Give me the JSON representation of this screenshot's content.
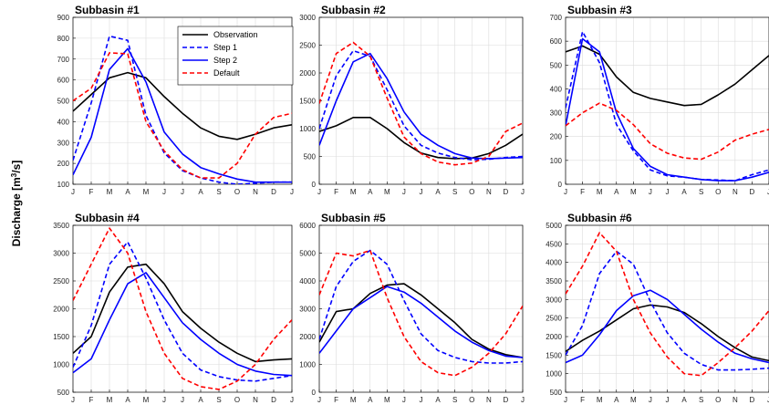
{
  "figure": {
    "ylabel_main": "Discharge [m",
    "ylabel_sup": "3",
    "ylabel_tail": "/s]"
  },
  "chart_data": [
    {
      "type": "line",
      "title": "Subbasin #1",
      "categories": [
        "J",
        "F",
        "M",
        "A",
        "M",
        "J",
        "J",
        "A",
        "S",
        "O",
        "N",
        "D",
        "J"
      ],
      "ylim": [
        100,
        900
      ],
      "yticks": [
        100,
        200,
        300,
        400,
        500,
        600,
        700,
        800,
        900
      ],
      "grid": true,
      "legend": "top-right",
      "series": [
        {
          "name": "Observation",
          "color": "#000000",
          "dash": "solid",
          "values": [
            450,
            530,
            610,
            635,
            610,
            520,
            440,
            370,
            330,
            315,
            340,
            370,
            385
          ]
        },
        {
          "name": "Step 1",
          "color": "#0000ff",
          "dash": "dashed",
          "values": [
            215,
            490,
            810,
            790,
            430,
            250,
            165,
            130,
            110,
            100,
            105,
            110,
            110
          ]
        },
        {
          "name": "Step 2",
          "color": "#0000ff",
          "dash": "solid",
          "values": [
            145,
            325,
            650,
            750,
            590,
            350,
            245,
            180,
            150,
            125,
            110,
            110,
            110
          ]
        },
        {
          "name": "Default",
          "color": "#ff0000",
          "dash": "dashed",
          "values": [
            500,
            560,
            730,
            725,
            400,
            260,
            170,
            130,
            130,
            200,
            340,
            420,
            440
          ]
        }
      ]
    },
    {
      "type": "line",
      "title": "Subbasin #2",
      "categories": [
        "J",
        "F",
        "M",
        "A",
        "M",
        "J",
        "J",
        "A",
        "S",
        "O",
        "N",
        "D",
        "J"
      ],
      "ylim": [
        0,
        3000
      ],
      "yticks": [
        0,
        500,
        1000,
        1500,
        2000,
        2500,
        3000
      ],
      "grid": true,
      "series": [
        {
          "name": "Observation",
          "color": "#000000",
          "dash": "solid",
          "values": [
            950,
            1050,
            1200,
            1200,
            1000,
            750,
            560,
            480,
            460,
            470,
            550,
            700,
            900
          ]
        },
        {
          "name": "Step 1",
          "color": "#0000ff",
          "dash": "dashed",
          "values": [
            1000,
            1950,
            2400,
            2300,
            1700,
            1050,
            700,
            560,
            480,
            440,
            450,
            480,
            500
          ]
        },
        {
          "name": "Step 2",
          "color": "#0000ff",
          "dash": "solid",
          "values": [
            700,
            1500,
            2200,
            2350,
            1900,
            1300,
            900,
            700,
            550,
            470,
            460,
            470,
            480
          ]
        },
        {
          "name": "Default",
          "color": "#ff0000",
          "dash": "dashed",
          "values": [
            1450,
            2350,
            2550,
            2300,
            1550,
            850,
            550,
            400,
            350,
            380,
            500,
            950,
            1100
          ]
        }
      ]
    },
    {
      "type": "line",
      "title": "Subbasin #3",
      "categories": [
        "J",
        "F",
        "M",
        "A",
        "M",
        "J",
        "J",
        "A",
        "S",
        "O",
        "N",
        "D",
        "J"
      ],
      "ylim": [
        0,
        700
      ],
      "yticks": [
        0,
        100,
        200,
        300,
        400,
        500,
        600,
        700
      ],
      "grid": true,
      "series": [
        {
          "name": "Observation",
          "color": "#000000",
          "dash": "solid",
          "values": [
            555,
            580,
            545,
            450,
            385,
            360,
            345,
            330,
            335,
            375,
            420,
            480,
            540
          ]
        },
        {
          "name": "Step 1",
          "color": "#0000ff",
          "dash": "dashed",
          "values": [
            320,
            640,
            510,
            250,
            140,
            60,
            35,
            30,
            20,
            18,
            15,
            40,
            60
          ]
        },
        {
          "name": "Step 2",
          "color": "#0000ff",
          "dash": "solid",
          "values": [
            245,
            610,
            555,
            300,
            150,
            75,
            40,
            30,
            20,
            15,
            15,
            30,
            50
          ]
        },
        {
          "name": "Default",
          "color": "#ff0000",
          "dash": "dashed",
          "values": [
            245,
            300,
            340,
            310,
            250,
            170,
            130,
            110,
            105,
            135,
            185,
            210,
            230
          ]
        }
      ]
    },
    {
      "type": "line",
      "title": "Subbasin #4",
      "categories": [
        "J",
        "F",
        "M",
        "A",
        "M",
        "J",
        "J",
        "A",
        "S",
        "O",
        "N",
        "D",
        "J"
      ],
      "ylim": [
        500,
        3500
      ],
      "yticks": [
        500,
        1000,
        1500,
        2000,
        2500,
        3000,
        3500
      ],
      "grid": true,
      "series": [
        {
          "name": "Observation",
          "color": "#000000",
          "dash": "solid",
          "values": [
            1200,
            1500,
            2300,
            2750,
            2800,
            2450,
            1950,
            1650,
            1400,
            1200,
            1050,
            1080,
            1100
          ]
        },
        {
          "name": "Step 1",
          "color": "#0000ff",
          "dash": "dashed",
          "values": [
            950,
            1700,
            2800,
            3200,
            2550,
            1800,
            1200,
            900,
            780,
            720,
            700,
            750,
            800
          ]
        },
        {
          "name": "Step 2",
          "color": "#0000ff",
          "dash": "solid",
          "values": [
            850,
            1100,
            1800,
            2450,
            2650,
            2200,
            1750,
            1450,
            1200,
            1000,
            880,
            820,
            800
          ]
        },
        {
          "name": "Default",
          "color": "#ff0000",
          "dash": "dashed",
          "values": [
            2150,
            2800,
            3450,
            3000,
            1950,
            1200,
            750,
            600,
            550,
            700,
            1000,
            1450,
            1800
          ]
        }
      ]
    },
    {
      "type": "line",
      "title": "Subbasin #5",
      "categories": [
        "J",
        "F",
        "M",
        "A",
        "M",
        "J",
        "J",
        "A",
        "S",
        "O",
        "N",
        "D",
        "J"
      ],
      "ylim": [
        0,
        6000
      ],
      "yticks": [
        0,
        1000,
        2000,
        3000,
        4000,
        5000,
        6000
      ],
      "grid": true,
      "series": [
        {
          "name": "Observation",
          "color": "#000000",
          "dash": "solid",
          "values": [
            1800,
            2900,
            3000,
            3550,
            3850,
            3900,
            3500,
            3000,
            2500,
            1900,
            1550,
            1350,
            1250
          ]
        },
        {
          "name": "Step 1",
          "color": "#0000ff",
          "dash": "dashed",
          "values": [
            1900,
            3800,
            4700,
            5100,
            4600,
            3300,
            2100,
            1500,
            1250,
            1100,
            1050,
            1050,
            1100
          ]
        },
        {
          "name": "Step 2",
          "color": "#0000ff",
          "dash": "solid",
          "values": [
            1400,
            2200,
            3000,
            3400,
            3800,
            3600,
            3200,
            2700,
            2200,
            1800,
            1500,
            1300,
            1250
          ]
        },
        {
          "name": "Default",
          "color": "#ff0000",
          "dash": "dashed",
          "values": [
            3500,
            5000,
            4900,
            5100,
            3400,
            2000,
            1100,
            700,
            600,
            900,
            1400,
            2100,
            3100
          ]
        }
      ]
    },
    {
      "type": "line",
      "title": "Subbasin #6",
      "categories": [
        "J",
        "F",
        "M",
        "A",
        "M",
        "J",
        "J",
        "A",
        "S",
        "O",
        "N",
        "D",
        "J"
      ],
      "ylim": [
        500,
        5000
      ],
      "yticks": [
        500,
        1000,
        1500,
        2000,
        2500,
        3000,
        3500,
        4000,
        4500,
        5000
      ],
      "grid": true,
      "series": [
        {
          "name": "Observation",
          "color": "#000000",
          "dash": "solid",
          "values": [
            1600,
            1900,
            2150,
            2450,
            2750,
            2850,
            2800,
            2650,
            2350,
            2000,
            1700,
            1450,
            1350
          ]
        },
        {
          "name": "Step 1",
          "color": "#0000ff",
          "dash": "dashed",
          "values": [
            1500,
            2300,
            3700,
            4300,
            3950,
            2950,
            2100,
            1550,
            1250,
            1100,
            1100,
            1120,
            1150
          ]
        },
        {
          "name": "Step 2",
          "color": "#0000ff",
          "dash": "solid",
          "values": [
            1300,
            1500,
            2050,
            2700,
            3100,
            3250,
            3000,
            2600,
            2200,
            1850,
            1550,
            1400,
            1300
          ]
        },
        {
          "name": "Default",
          "color": "#ff0000",
          "dash": "dashed",
          "values": [
            3150,
            3900,
            4800,
            4300,
            3000,
            2100,
            1450,
            1000,
            950,
            1300,
            1700,
            2150,
            2700
          ]
        }
      ]
    }
  ]
}
